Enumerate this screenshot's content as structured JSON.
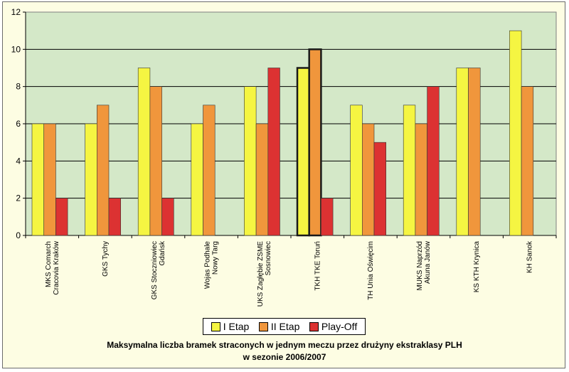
{
  "chart_data": {
    "type": "bar",
    "title_line1": "Maksymalna liczba bramek straconych w jednym meczu przez drużyny ekstraklasy PLH",
    "title_line2": "w sezonie 2006/2007",
    "ylim": [
      0,
      12
    ],
    "yticks": [
      0,
      2,
      4,
      6,
      8,
      10,
      12
    ],
    "grid": true,
    "legend_position": "bottom",
    "categories": [
      [
        "MKS Comarch",
        "Cracovia Kraków"
      ],
      [
        "GKS Tychy"
      ],
      [
        "GKS Stoczniowiec",
        "Gdańsk"
      ],
      [
        "Wojas Podhale",
        "Nowy Targ"
      ],
      [
        "UKS Zagłębie ZSME",
        "Sosnowiec"
      ],
      [
        "TKH TKE Toruń"
      ],
      [
        "TH Unia Oświęcim"
      ],
      [
        "MUKS Naprzód",
        "Akuna Janów"
      ],
      [
        "KS KTH Krynica"
      ],
      [
        "KH Sanok"
      ]
    ],
    "series": [
      {
        "name": "I Etap",
        "color": "#f5f542",
        "values": [
          6,
          6,
          9,
          6,
          8,
          9,
          7,
          7,
          9,
          11
        ]
      },
      {
        "name": "II Etap",
        "color": "#f0963c",
        "values": [
          6,
          7,
          8,
          7,
          6,
          10,
          6,
          6,
          9,
          8
        ]
      },
      {
        "name": "Play-Off",
        "color": "#dc3232",
        "values": [
          2,
          2,
          2,
          null,
          9,
          2,
          5,
          8,
          null,
          null
        ]
      }
    ],
    "highlighted_category": "TKH TKE Toruń",
    "plot_background": "#d4e8c8"
  }
}
